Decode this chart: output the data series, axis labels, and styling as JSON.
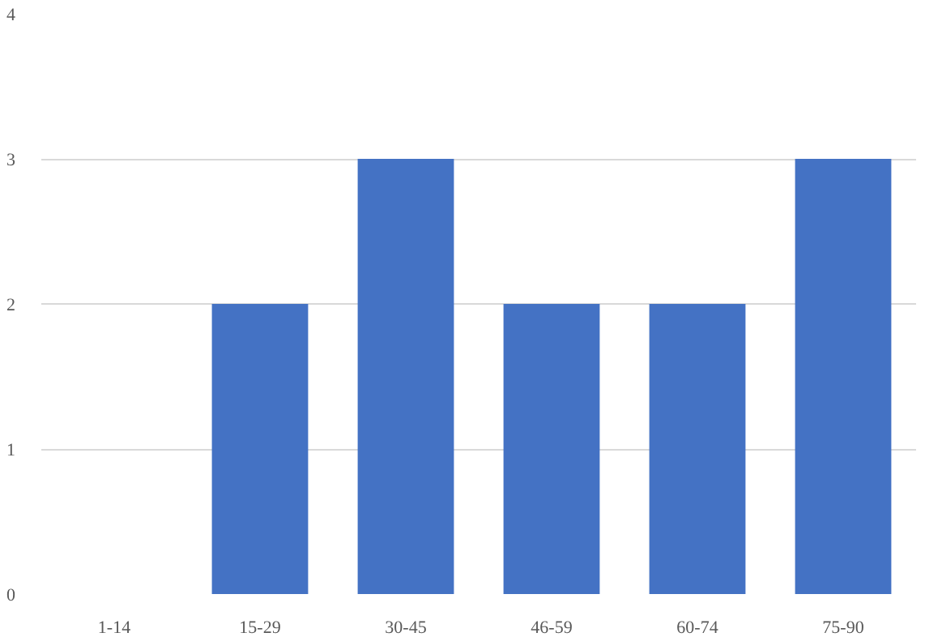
{
  "chart_data": {
    "type": "bar",
    "categories": [
      "1-14",
      "15-29",
      "30-45",
      "46-59",
      "60-74",
      "75-90"
    ],
    "values": [
      0,
      2,
      3,
      2,
      2,
      3
    ],
    "color": "#4472c4",
    "ylim": [
      0,
      4
    ],
    "yticks": [
      0,
      1,
      2,
      3,
      4
    ],
    "grid": "y"
  }
}
